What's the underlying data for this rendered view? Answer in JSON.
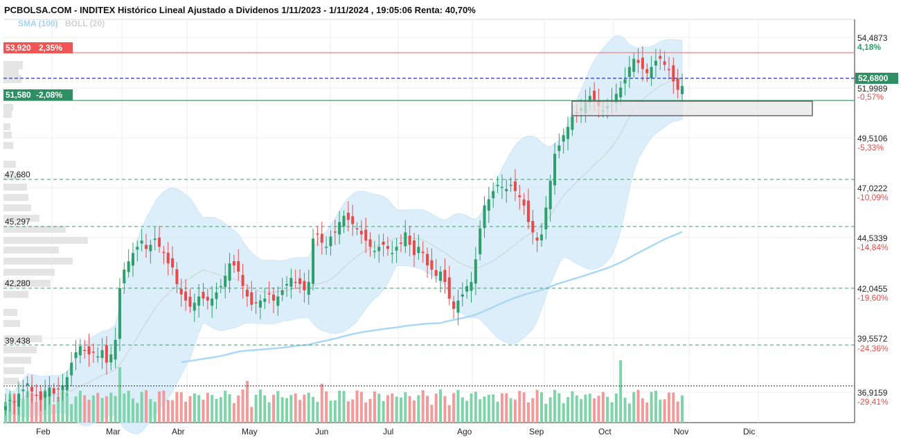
{
  "header": {
    "title": "PCBOLSA.COM - INDITEX Histórico Lineal Ajustado a Dividenos 1/11/2023 - 1/11/2024 , 19:05:06 Renta: 40,70%",
    "indicator_sma": "SMA (100)",
    "indicator_boll": "BOLL (20)"
  },
  "colors": {
    "up": "#2e9e6b",
    "down": "#e84a4a",
    "band_fill": "#d7ecfa",
    "sma100": "#a9d8f5",
    "boll_mid": "#cfcfcf",
    "resistance": "#f08080",
    "support": "#3a9a6a",
    "current": "#2233cc",
    "level_dash": "#3a9a6a",
    "vol_up": "#7fd3a8",
    "vol_down": "#f29a9a"
  },
  "price_tags": {
    "resistance": {
      "value": "53,920",
      "pct": "2,35%"
    },
    "support": {
      "value": "51,580",
      "pct": "-2,08%"
    },
    "current": {
      "value": "52,6800"
    }
  },
  "levels": [
    "47,680",
    "45,297",
    "42,280",
    "39,438"
  ],
  "y_axis": [
    {
      "value": "54,4873",
      "pct": "4,18%"
    },
    {
      "value": "51,9989",
      "pct": "-0,57%"
    },
    {
      "value": "49,5106",
      "pct": "-5,33%"
    },
    {
      "value": "47,0222",
      "pct": "-10,09%"
    },
    {
      "value": "44,5339",
      "pct": "-14,84%"
    },
    {
      "value": "42,0455",
      "pct": "-19,60%"
    },
    {
      "value": "39,5572",
      "pct": "-24,36%"
    },
    {
      "value": "36,9159",
      "pct": "-29,41%"
    }
  ],
  "x_axis": [
    "Feb",
    "Mar",
    "Abr",
    "May",
    "Jun",
    "Jul",
    "Ago",
    "Sep",
    "Oct",
    "Nov",
    "Dic"
  ],
  "chart_data": {
    "type": "candlestick",
    "title": "PCBOLSA.COM - INDITEX Histórico Lineal Ajustado a Dividenos 1/11/2023 - 1/11/2024 , 19:05:06 Renta: 40,70%",
    "ylim": [
      36.4,
      55.9
    ],
    "x": [
      "Feb",
      "Mar",
      "Abr",
      "May",
      "Jun",
      "Jul",
      "Ago",
      "Sep",
      "Oct",
      "Nov",
      "Dic"
    ],
    "close_series": [
      37.2,
      37.5,
      37.4,
      37.8,
      38.0,
      38.3,
      37.9,
      37.7,
      37.5,
      37.9,
      38.1,
      37.8,
      38.0,
      38.2,
      38.6,
      39.3,
      39.8,
      40.1,
      39.9,
      39.7,
      39.8,
      39.6,
      39.9,
      39.3,
      39.7,
      40.4,
      42.9,
      43.8,
      44.2,
      44.6,
      44.9,
      45.2,
      44.8,
      45.0,
      45.3,
      44.9,
      44.6,
      44.1,
      43.9,
      43.1,
      42.6,
      42.3,
      42.0,
      42.2,
      42.5,
      42.4,
      42.3,
      42.4,
      42.7,
      43.0,
      43.5,
      44.1,
      44.0,
      43.7,
      43.0,
      42.5,
      42.1,
      42.2,
      42.3,
      42.4,
      42.6,
      42.3,
      42.5,
      42.8,
      43.1,
      43.4,
      43.2,
      43.1,
      42.8,
      43.2,
      45.3,
      45.5,
      45.1,
      44.9,
      45.4,
      45.6,
      46.1,
      46.4,
      46.2,
      46.0,
      45.8,
      45.5,
      45.2,
      44.9,
      44.7,
      44.9,
      45.0,
      44.8,
      44.6,
      44.9,
      45.1,
      45.6,
      45.0,
      44.5,
      44.9,
      44.6,
      44.0,
      43.8,
      43.5,
      43.7,
      43.2,
      42.4,
      41.9,
      42.3,
      42.6,
      43.0,
      43.2,
      44.3,
      45.8,
      46.9,
      47.2,
      47.6,
      47.9,
      47.8,
      47.7,
      47.9,
      47.6,
      47.3,
      46.9,
      46.1,
      45.6,
      45.2,
      45.5,
      46.8,
      48.1,
      49.4,
      49.8,
      50.3,
      50.7,
      51.2,
      51.4,
      51.6,
      51.9,
      52.2,
      52.0,
      51.7,
      51.5,
      51.7,
      52.0,
      52.3,
      52.6,
      53.0,
      53.6,
      54.0,
      53.8,
      53.5,
      53.3,
      53.6,
      53.9,
      54.0,
      53.7,
      53.5,
      52.9,
      52.5,
      52.68
    ],
    "sma100_range": [
      37.0,
      47.6
    ],
    "volume_peaks": [
      "Jun",
      "Jul",
      "Sep",
      "Oct"
    ]
  }
}
